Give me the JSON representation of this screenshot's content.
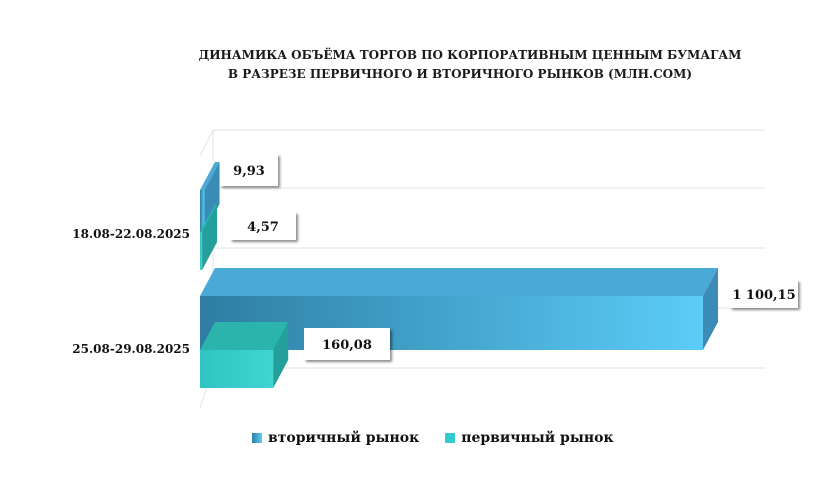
{
  "chart_data": {
    "type": "bar",
    "orientation": "horizontal",
    "title": "ДИНАМИКА ОБЪЁМА ТОРГОВ ПО КОРПОРАТИВНЫМ ЦЕННЫМ БУМАГАМ",
    "subtitle": "В РАЗРЕЗЕ ПЕРВИЧНОГО И ВТОРИЧНОГО РЫНКОВ  (МЛН.СОМ)",
    "categories": [
      "18.08-22.08.2025",
      "25.08-29.08.2025"
    ],
    "series": [
      {
        "name": "вторичный рынок",
        "values": [
          9.93,
          1100.15
        ],
        "labels": [
          "9,93",
          "1 100,15"
        ],
        "color": "#4fb8e8"
      },
      {
        "name": "первичный рынок",
        "values": [
          4.57,
          160.08
        ],
        "labels": [
          "4,57",
          "160,08"
        ],
        "color": "#33cccc"
      }
    ],
    "xlim": [
      0,
      1100.15
    ],
    "grid": true,
    "legend_position": "bottom"
  }
}
